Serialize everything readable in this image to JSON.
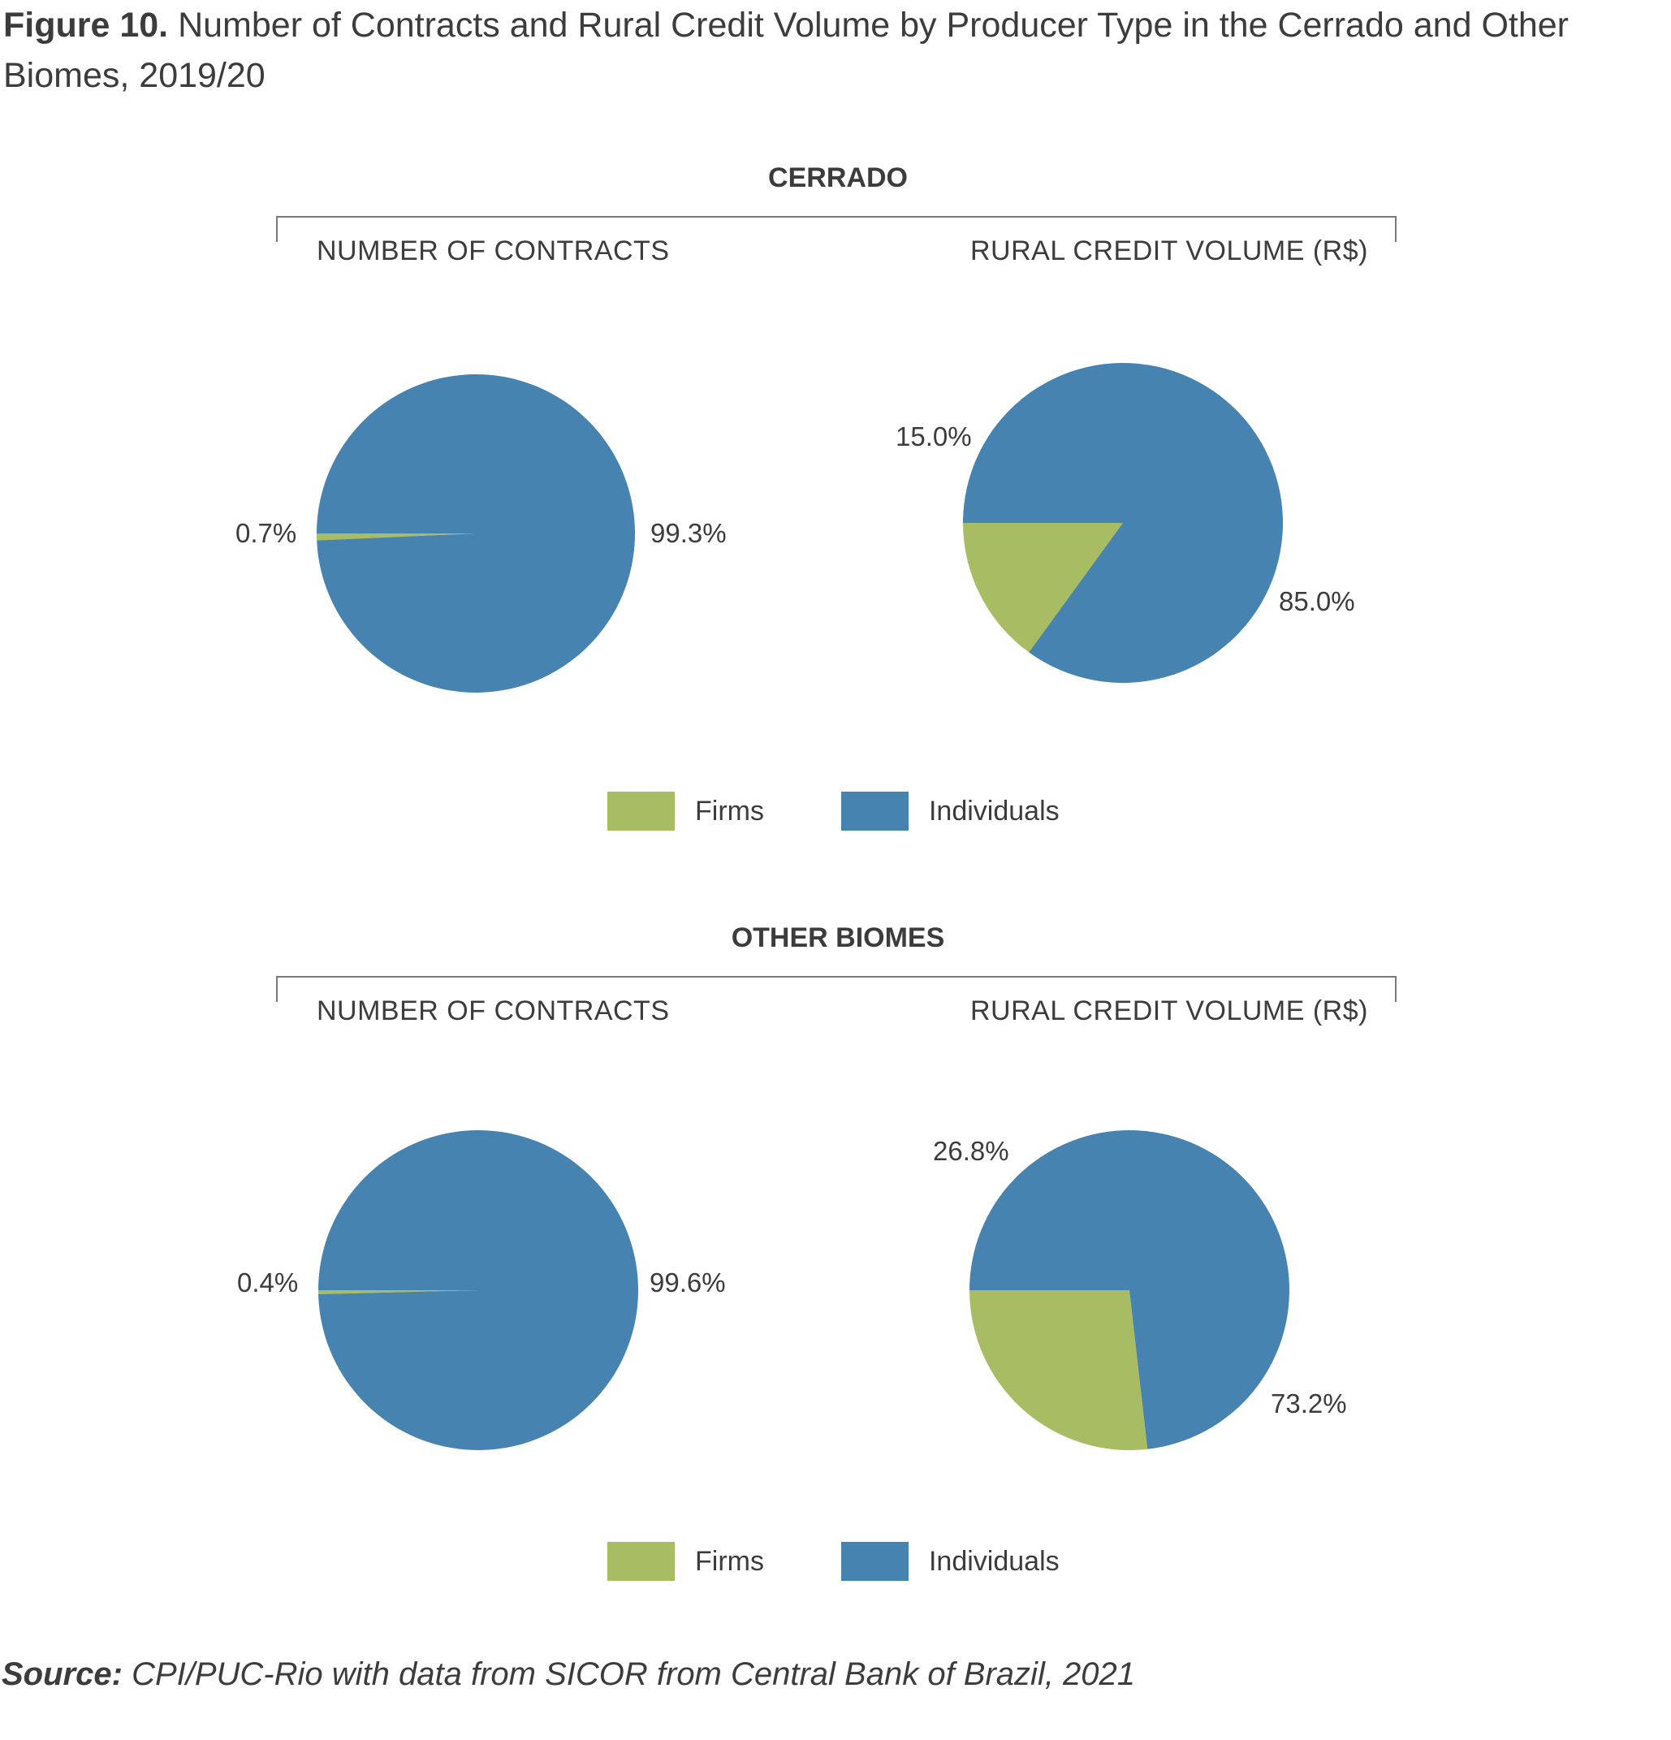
{
  "figure": {
    "label": "Figure 10.",
    "title": "Number of Contracts and Rural Credit Volume by Producer Type in the Cerrado and Other Biomes, 2019/20"
  },
  "colors": {
    "firms": "#a8bd63",
    "individuals": "#4683b0"
  },
  "legend": {
    "firms": "Firms",
    "individuals": "Individuals"
  },
  "sections": [
    {
      "title": "CERRADO",
      "left_title": "NUMBER OF CONTRACTS",
      "right_title": "RURAL CREDIT VOLUME (R$)"
    },
    {
      "title": "OTHER BIOMES",
      "left_title": "NUMBER OF CONTRACTS",
      "right_title": "RURAL CREDIT VOLUME (R$)"
    }
  ],
  "chart_data": [
    {
      "type": "pie",
      "title": "NUMBER OF CONTRACTS",
      "group": "CERRADO",
      "slices": [
        {
          "name": "Firms",
          "value": 0.7,
          "label": "0.7%"
        },
        {
          "name": "Individuals",
          "value": 99.3,
          "label": "99.3%"
        }
      ]
    },
    {
      "type": "pie",
      "title": "RURAL CREDIT VOLUME (R$)",
      "group": "CERRADO",
      "slices": [
        {
          "name": "Firms",
          "value": 15.0,
          "label": "15.0%"
        },
        {
          "name": "Individuals",
          "value": 85.0,
          "label": "85.0%"
        }
      ]
    },
    {
      "type": "pie",
      "title": "NUMBER OF CONTRACTS",
      "group": "OTHER BIOMES",
      "slices": [
        {
          "name": "Firms",
          "value": 0.4,
          "label": "0.4%"
        },
        {
          "name": "Individuals",
          "value": 99.6,
          "label": "99.6%"
        }
      ]
    },
    {
      "type": "pie",
      "title": "RURAL CREDIT VOLUME (R$)",
      "group": "OTHER BIOMES",
      "slices": [
        {
          "name": "Firms",
          "value": 26.8,
          "label": "26.8%"
        },
        {
          "name": "Individuals",
          "value": 73.2,
          "label": "73.2%"
        }
      ]
    }
  ],
  "source": {
    "label": "Source:",
    "text": "CPI/PUC-Rio with data from SICOR from Central Bank of Brazil, 2021"
  }
}
